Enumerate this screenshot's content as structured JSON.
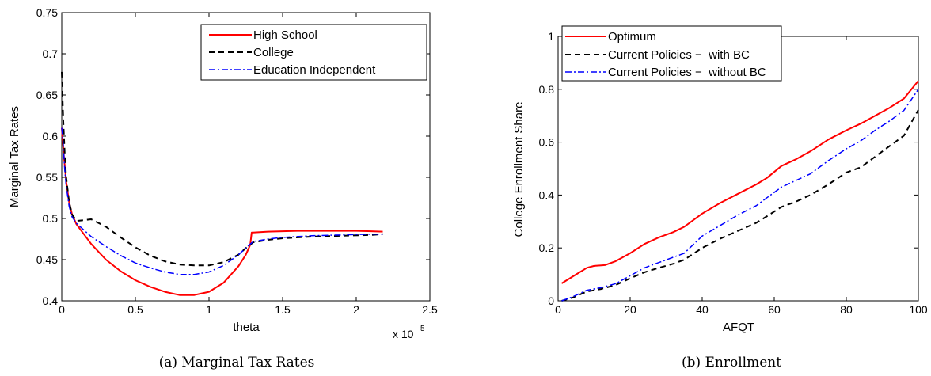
{
  "chart_data": [
    {
      "type": "line",
      "caption": "(a) Marginal Tax Rates",
      "xlabel": "theta",
      "ylabel": "Marginal Tax Rates",
      "xlim": [
        0,
        250000
      ],
      "ylim": [
        0.4,
        0.75
      ],
      "x_ticks": [
        "0",
        "0.5",
        "1",
        "1.5",
        "2",
        "2.5"
      ],
      "x_tick_values": [
        0,
        50000,
        100000,
        150000,
        200000,
        250000
      ],
      "x_multiplier": "x 10",
      "x_multiplier_exp": "5",
      "y_ticks": [
        "0.4",
        "0.45",
        "0.5",
        "0.55",
        "0.6",
        "0.65",
        "0.7",
        "0.75"
      ],
      "y_tick_values": [
        0.4,
        0.45,
        0.5,
        0.55,
        0.6,
        0.65,
        0.7,
        0.75
      ],
      "legend_position": "top-right",
      "series": [
        {
          "name": "High School",
          "color": "#ff0000",
          "style": "solid",
          "x": [
            0,
            1500,
            3000,
            5000,
            7000,
            10000,
            20000,
            30000,
            40000,
            50000,
            60000,
            70000,
            80000,
            90000,
            100000,
            110000,
            120000,
            125000,
            128000,
            129000,
            130000,
            140000,
            150000,
            160000,
            170000,
            180000,
            190000,
            200000,
            210000,
            218000
          ],
          "y": [
            0.61,
            0.575,
            0.545,
            0.52,
            0.505,
            0.493,
            0.469,
            0.45,
            0.436,
            0.425,
            0.417,
            0.411,
            0.407,
            0.407,
            0.411,
            0.422,
            0.442,
            0.456,
            0.468,
            0.483,
            0.483,
            0.484,
            0.4845,
            0.485,
            0.485,
            0.485,
            0.485,
            0.485,
            0.4845,
            0.484
          ]
        },
        {
          "name": "College",
          "color": "#000000",
          "style": "dashed",
          "x": [
            0,
            1000,
            2000,
            3000,
            5000,
            7000,
            10000,
            15000,
            20000,
            30000,
            40000,
            50000,
            60000,
            70000,
            80000,
            90000,
            100000,
            110000,
            120000,
            125000,
            130000,
            140000,
            150000,
            170000,
            190000,
            210000,
            218000
          ],
          "y": [
            0.678,
            0.62,
            0.58,
            0.55,
            0.52,
            0.505,
            0.497,
            0.498,
            0.499,
            0.49,
            0.477,
            0.465,
            0.455,
            0.448,
            0.444,
            0.443,
            0.443,
            0.447,
            0.456,
            0.464,
            0.471,
            0.474,
            0.476,
            0.478,
            0.479,
            0.48,
            0.481
          ]
        },
        {
          "name": "Education Independent",
          "color": "#0000ff",
          "style": "dashdot",
          "x": [
            0,
            1000,
            2000,
            3000,
            5000,
            7000,
            10000,
            20000,
            30000,
            40000,
            50000,
            60000,
            70000,
            80000,
            90000,
            100000,
            110000,
            120000,
            125000,
            130000,
            140000,
            150000,
            170000,
            190000,
            210000,
            218000
          ],
          "y": [
            0.61,
            0.59,
            0.56,
            0.54,
            0.515,
            0.502,
            0.494,
            0.478,
            0.466,
            0.455,
            0.446,
            0.44,
            0.435,
            0.432,
            0.432,
            0.435,
            0.443,
            0.456,
            0.464,
            0.472,
            0.475,
            0.477,
            0.479,
            0.48,
            0.481,
            0.481
          ]
        }
      ]
    },
    {
      "type": "line",
      "caption": "(b) Enrollment",
      "xlabel": "AFQT",
      "ylabel": "College Enrollment Share",
      "xlim": [
        0,
        100
      ],
      "ylim": [
        0,
        1
      ],
      "x_ticks": [
        "0",
        "20",
        "40",
        "60",
        "80",
        "100"
      ],
      "x_tick_values": [
        0,
        20,
        40,
        60,
        80,
        100
      ],
      "y_ticks": [
        "0",
        "0.2",
        "0.4",
        "0.6",
        "0.8",
        "1"
      ],
      "y_tick_values": [
        0,
        0.2,
        0.4,
        0.6,
        0.8,
        1
      ],
      "legend_position": "top-left",
      "series": [
        {
          "name": "Optimum",
          "color": "#ff0000",
          "style": "solid",
          "x": [
            1,
            5,
            8,
            10,
            13,
            16,
            20,
            24,
            28,
            32,
            35,
            40,
            45,
            50,
            55,
            58,
            62,
            66,
            70,
            75,
            80,
            84,
            88,
            92,
            96,
            100
          ],
          "y": [
            0.066,
            0.1,
            0.125,
            0.132,
            0.135,
            0.15,
            0.18,
            0.215,
            0.24,
            0.26,
            0.28,
            0.33,
            0.37,
            0.405,
            0.44,
            0.465,
            0.51,
            0.535,
            0.565,
            0.61,
            0.645,
            0.67,
            0.7,
            0.73,
            0.765,
            0.832
          ]
        },
        {
          "name": "Current Policies −  with BC",
          "color": "#000000",
          "style": "dashed",
          "x": [
            1,
            4,
            8,
            12,
            16,
            20,
            24,
            28,
            32,
            35,
            40,
            45,
            50,
            55,
            58,
            62,
            66,
            70,
            75,
            80,
            84,
            88,
            92,
            96,
            100
          ],
          "y": [
            0.0,
            0.012,
            0.035,
            0.045,
            0.06,
            0.085,
            0.108,
            0.125,
            0.14,
            0.155,
            0.2,
            0.235,
            0.265,
            0.295,
            0.32,
            0.355,
            0.375,
            0.4,
            0.44,
            0.485,
            0.505,
            0.545,
            0.585,
            0.625,
            0.722
          ]
        },
        {
          "name": "Current Policies −  without BC",
          "color": "#0000ff",
          "style": "dashdot",
          "x": [
            1,
            4,
            8,
            12,
            16,
            20,
            24,
            28,
            32,
            35,
            40,
            45,
            50,
            55,
            58,
            62,
            66,
            70,
            75,
            80,
            84,
            88,
            92,
            96,
            100
          ],
          "y": [
            0.0,
            0.015,
            0.04,
            0.05,
            0.065,
            0.095,
            0.125,
            0.145,
            0.165,
            0.18,
            0.245,
            0.285,
            0.325,
            0.36,
            0.39,
            0.43,
            0.455,
            0.48,
            0.53,
            0.575,
            0.605,
            0.645,
            0.68,
            0.72,
            0.8
          ]
        }
      ]
    }
  ]
}
